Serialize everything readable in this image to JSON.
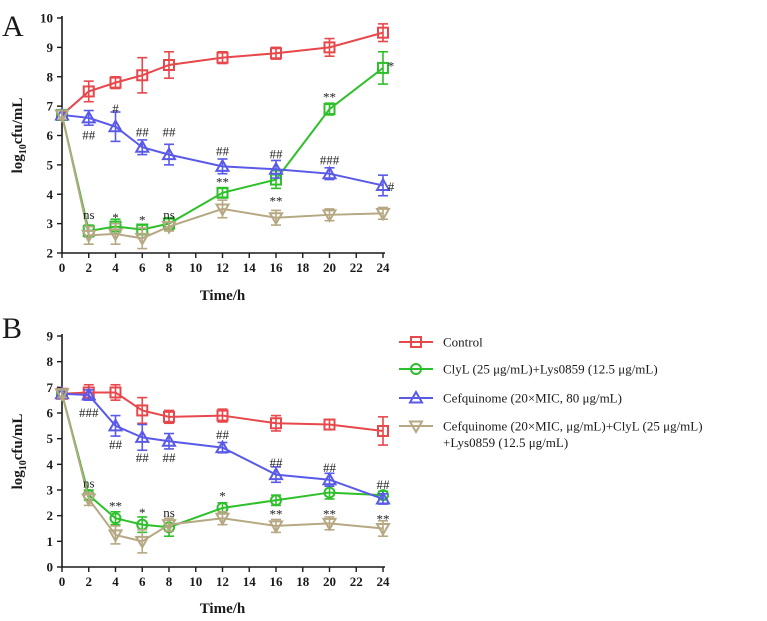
{
  "colors": {
    "control": "#e8474b",
    "clyl": "#2ec02a",
    "cef": "#5a5ae8",
    "combo": "#b5a882",
    "axis": "#1a1a1a"
  },
  "legend": {
    "items": [
      {
        "key": "control",
        "marker": "square",
        "label": "Control"
      },
      {
        "key": "clyl",
        "marker": "circle",
        "label": "ClyL (25 μg/mL)+Lys0859 (12.5 μg/mL)"
      },
      {
        "key": "cef",
        "marker": "triangle-up",
        "label": "Cefquinome (20×MIC, 80 μg/mL)"
      },
      {
        "key": "combo",
        "marker": "triangle-down",
        "label": "Cefquinome (20×MIC, μg/mL)+ClyL (25 μg/mL)",
        "label2": "+Lys0859 (12.5 μg/mL)"
      }
    ]
  },
  "chart_data": [
    {
      "type": "line",
      "panel": "A",
      "xlabel": "Time/h",
      "ylabel_main": "log",
      "ylabel_sub": "10",
      "ylabel_rest": "cfu/mL",
      "xlim": [
        0,
        24
      ],
      "ylim": [
        2,
        10
      ],
      "xticks": [
        0,
        2,
        4,
        6,
        8,
        10,
        12,
        14,
        16,
        18,
        20,
        22,
        24
      ],
      "yticks": [
        2,
        3,
        4,
        5,
        6,
        7,
        8,
        9,
        10
      ],
      "series": [
        {
          "key": "control",
          "name": "Control",
          "marker": "square",
          "x": [
            0,
            2,
            4,
            6,
            8,
            12,
            16,
            20,
            24
          ],
          "y": [
            6.7,
            7.5,
            7.8,
            8.05,
            8.4,
            8.65,
            8.8,
            9.0,
            9.5
          ],
          "err": [
            0.15,
            0.35,
            0.2,
            0.6,
            0.45,
            0.2,
            0.2,
            0.3,
            0.3
          ]
        },
        {
          "key": "clyl",
          "name": "ClyL (25 μg/mL)+Lys0859 (12.5 μg/mL)",
          "marker": "square",
          "x": [
            0,
            2,
            4,
            6,
            8,
            12,
            16,
            20,
            24
          ],
          "y": [
            6.7,
            2.75,
            2.9,
            2.8,
            3.0,
            4.05,
            4.5,
            6.9,
            8.3
          ],
          "err": [
            0.15,
            0.2,
            0.25,
            0.15,
            0.2,
            0.15,
            0.3,
            0.2,
            0.55
          ]
        },
        {
          "key": "cef",
          "name": "Cefquinome (20×MIC, 80 μg/mL)",
          "marker": "triangle-up",
          "x": [
            0,
            2,
            4,
            6,
            8,
            12,
            16,
            20,
            24
          ],
          "y": [
            6.7,
            6.6,
            6.3,
            5.6,
            5.35,
            4.95,
            4.85,
            4.7,
            4.3
          ],
          "err": [
            0.15,
            0.25,
            0.5,
            0.25,
            0.35,
            0.25,
            0.3,
            0.2,
            0.35
          ]
        },
        {
          "key": "combo",
          "name": "Cefquinome + ClyL + Lys0859",
          "marker": "triangle-down",
          "x": [
            0,
            2,
            4,
            6,
            8,
            12,
            16,
            20,
            24
          ],
          "y": [
            6.7,
            2.6,
            2.65,
            2.5,
            2.9,
            3.5,
            3.2,
            3.3,
            3.35
          ],
          "err": [
            0.15,
            0.3,
            0.35,
            0.35,
            0.15,
            0.3,
            0.25,
            0.2,
            0.2
          ]
        }
      ],
      "annotations": [
        {
          "text": "ns",
          "x": 2,
          "y": 3.3
        },
        {
          "text": "*",
          "x": 4,
          "y": 3.2
        },
        {
          "text": "*",
          "x": 6,
          "y": 3.1
        },
        {
          "text": "ns",
          "x": 8,
          "y": 3.3
        },
        {
          "text": "**",
          "x": 12,
          "y": 4.4
        },
        {
          "text": "**",
          "x": 16,
          "y": 3.75
        },
        {
          "text": "**",
          "x": 20,
          "y": 7.3
        },
        {
          "text": "*",
          "x": 24.6,
          "y": 8.35
        },
        {
          "text": "##",
          "x": 2,
          "y": 6.0
        },
        {
          "text": "#",
          "x": 4,
          "y": 6.9
        },
        {
          "text": "##",
          "x": 6,
          "y": 6.1
        },
        {
          "text": "##",
          "x": 8,
          "y": 6.1
        },
        {
          "text": "##",
          "x": 12,
          "y": 5.45
        },
        {
          "text": "##",
          "x": 16,
          "y": 5.35
        },
        {
          "text": "###",
          "x": 20,
          "y": 5.15
        },
        {
          "text": "#",
          "x": 24.6,
          "y": 4.25
        }
      ]
    },
    {
      "type": "line",
      "panel": "B",
      "xlabel": "Time/h",
      "ylabel_main": "log",
      "ylabel_sub": "10",
      "ylabel_rest": "cfu/mL",
      "xlim": [
        0,
        24
      ],
      "ylim": [
        0,
        9
      ],
      "xticks": [
        0,
        2,
        4,
        6,
        8,
        10,
        12,
        14,
        16,
        18,
        20,
        22,
        24
      ],
      "yticks": [
        0,
        1,
        2,
        3,
        4,
        5,
        6,
        7,
        8,
        9
      ],
      "series": [
        {
          "key": "control",
          "name": "Control",
          "marker": "square",
          "x": [
            0,
            2,
            4,
            6,
            8,
            12,
            16,
            20,
            24
          ],
          "y": [
            6.75,
            6.8,
            6.8,
            6.1,
            5.85,
            5.9,
            5.6,
            5.55,
            5.3
          ],
          "err": [
            0.15,
            0.3,
            0.3,
            0.5,
            0.25,
            0.25,
            0.3,
            0.2,
            0.55
          ]
        },
        {
          "key": "clyl",
          "name": "ClyL (25 μg/mL)+Lys0859 (12.5 μg/mL)",
          "marker": "circle",
          "x": [
            0,
            2,
            4,
            6,
            8,
            12,
            16,
            20,
            24
          ],
          "y": [
            6.75,
            2.8,
            1.9,
            1.65,
            1.55,
            2.3,
            2.6,
            2.9,
            2.8
          ],
          "err": [
            0.15,
            0.2,
            0.25,
            0.3,
            0.35,
            0.2,
            0.2,
            0.25,
            0.15
          ]
        },
        {
          "key": "cef",
          "name": "Cefquinome (20×MIC, 80 μg/mL)",
          "marker": "triangle-up",
          "x": [
            0,
            2,
            4,
            6,
            8,
            12,
            16,
            20,
            24
          ],
          "y": [
            6.75,
            6.7,
            5.5,
            5.05,
            4.9,
            4.65,
            3.6,
            3.4,
            2.65
          ],
          "err": [
            0.15,
            0.2,
            0.4,
            0.5,
            0.3,
            0.2,
            0.3,
            0.25,
            0.2
          ]
        },
        {
          "key": "combo",
          "name": "Cefquinome + ClyL + Lys0859",
          "marker": "triangle-down",
          "x": [
            0,
            2,
            4,
            6,
            8,
            12,
            16,
            20,
            24
          ],
          "y": [
            6.75,
            2.65,
            1.25,
            1.0,
            1.65,
            1.9,
            1.6,
            1.7,
            1.5
          ],
          "err": [
            0.15,
            0.25,
            0.35,
            0.45,
            0.25,
            0.25,
            0.25,
            0.25,
            0.3
          ]
        }
      ],
      "annotations": [
        {
          "text": "###",
          "x": 2,
          "y": 6.0
        },
        {
          "text": "ns",
          "x": 2,
          "y": 3.25
        },
        {
          "text": "**",
          "x": 4,
          "y": 2.35
        },
        {
          "text": "##",
          "x": 4,
          "y": 4.75
        },
        {
          "text": "*",
          "x": 6,
          "y": 2.1
        },
        {
          "text": "##",
          "x": 6,
          "y": 4.25
        },
        {
          "text": "ns",
          "x": 8,
          "y": 2.1
        },
        {
          "text": "##",
          "x": 8,
          "y": 4.25
        },
        {
          "text": "*",
          "x": 12,
          "y": 2.75
        },
        {
          "text": "##",
          "x": 12,
          "y": 5.15
        },
        {
          "text": "##",
          "x": 16,
          "y": 4.05
        },
        {
          "text": "**",
          "x": 16,
          "y": 2.05
        },
        {
          "text": "##",
          "x": 20,
          "y": 3.85
        },
        {
          "text": "**",
          "x": 20,
          "y": 2.05
        },
        {
          "text": "##",
          "x": 24,
          "y": 3.2
        },
        {
          "text": "**",
          "x": 24,
          "y": 1.85
        }
      ]
    }
  ]
}
